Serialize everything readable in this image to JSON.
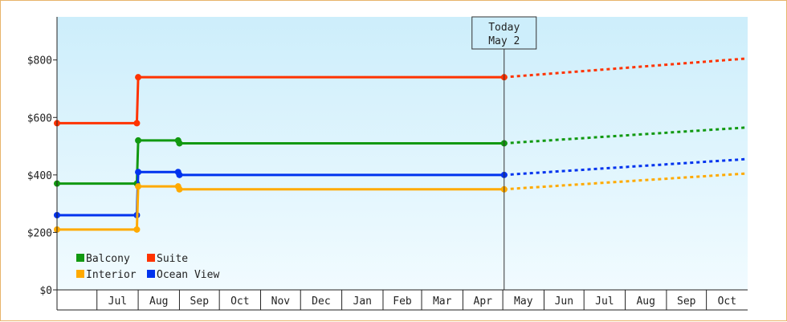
{
  "chart_data": {
    "type": "line",
    "title": "",
    "xlabel": "",
    "ylabel": "",
    "ylim": [
      0,
      950
    ],
    "yticks": [
      {
        "value": 0,
        "label": "$0"
      },
      {
        "value": 200,
        "label": "$200"
      },
      {
        "value": 400,
        "label": "$400"
      },
      {
        "value": 600,
        "label": "$600"
      },
      {
        "value": 800,
        "label": "$800"
      }
    ],
    "x_range": [
      "2023-06-01",
      "2024-10-31"
    ],
    "month_ticks": [
      {
        "start": "2023-06-01",
        "label": ""
      },
      {
        "start": "2023-07-01",
        "label": "Jul"
      },
      {
        "start": "2023-08-01",
        "label": "Aug"
      },
      {
        "start": "2023-09-01",
        "label": "Sep"
      },
      {
        "start": "2023-10-01",
        "label": "Oct"
      },
      {
        "start": "2023-11-01",
        "label": "Nov"
      },
      {
        "start": "2023-12-01",
        "label": "Dec"
      },
      {
        "start": "2024-01-01",
        "label": "Jan"
      },
      {
        "start": "2024-02-01",
        "label": "Feb"
      },
      {
        "start": "2024-03-01",
        "label": "Mar"
      },
      {
        "start": "2024-04-01",
        "label": "Apr"
      },
      {
        "start": "2024-05-01",
        "label": "May"
      },
      {
        "start": "2024-06-01",
        "label": "Jun"
      },
      {
        "start": "2024-07-01",
        "label": "Jul"
      },
      {
        "start": "2024-08-01",
        "label": "Aug"
      },
      {
        "start": "2024-09-01",
        "label": "Sep"
      },
      {
        "start": "2024-10-01",
        "label": "Oct"
      }
    ],
    "today": {
      "date": "2024-05-02",
      "line1": "Today",
      "line2": "May 2"
    },
    "series": [
      {
        "name": "Suite",
        "color": "#ff3300",
        "points": [
          [
            "2023-06-01",
            580
          ],
          [
            "2023-07-31",
            580
          ],
          [
            "2023-08-01",
            740
          ],
          [
            "2024-05-02",
            740
          ]
        ],
        "projection": [
          [
            "2024-05-02",
            740
          ],
          [
            "2024-10-31",
            805
          ]
        ]
      },
      {
        "name": "Balcony",
        "color": "#119911",
        "points": [
          [
            "2023-06-01",
            370
          ],
          [
            "2023-07-31",
            370
          ],
          [
            "2023-08-01",
            520
          ],
          [
            "2023-08-31",
            520
          ],
          [
            "2023-09-01",
            510
          ],
          [
            "2024-05-02",
            510
          ]
        ],
        "projection": [
          [
            "2024-05-02",
            510
          ],
          [
            "2024-10-31",
            565
          ]
        ]
      },
      {
        "name": "Ocean View",
        "color": "#0033ee",
        "points": [
          [
            "2023-06-01",
            260
          ],
          [
            "2023-07-31",
            260
          ],
          [
            "2023-08-01",
            410
          ],
          [
            "2023-08-31",
            410
          ],
          [
            "2023-09-01",
            400
          ],
          [
            "2024-05-02",
            400
          ]
        ],
        "projection": [
          [
            "2024-05-02",
            400
          ],
          [
            "2024-10-31",
            455
          ]
        ]
      },
      {
        "name": "Interior",
        "color": "#ffaa00",
        "points": [
          [
            "2023-06-01",
            210
          ],
          [
            "2023-07-31",
            210
          ],
          [
            "2023-08-01",
            360
          ],
          [
            "2023-08-31",
            360
          ],
          [
            "2023-09-01",
            350
          ],
          [
            "2024-05-02",
            350
          ]
        ],
        "projection": [
          [
            "2024-05-02",
            350
          ],
          [
            "2024-10-31",
            405
          ]
        ]
      }
    ],
    "legend": {
      "placement": "bottom-left",
      "columns": [
        [
          "Balcony",
          "Interior"
        ],
        [
          "Suite",
          "Ocean View"
        ]
      ]
    },
    "background_gradient": [
      "#cdeefb",
      "#f1fbff"
    ]
  }
}
